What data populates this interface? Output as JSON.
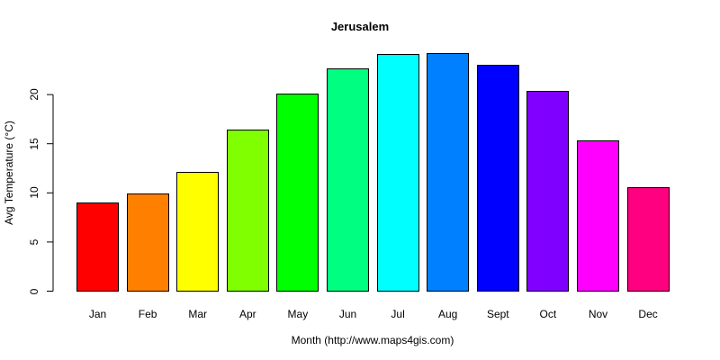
{
  "chart_data": {
    "type": "bar",
    "title": "Jerusalem",
    "xlabel": "Month (http://www.maps4gis.com)",
    "ylabel": "Avg Temperature (°C)",
    "categories": [
      "Jan",
      "Feb",
      "Mar",
      "Apr",
      "May",
      "Jun",
      "Jul",
      "Aug",
      "Sept",
      "Oct",
      "Nov",
      "Dec"
    ],
    "values": [
      9.0,
      9.9,
      12.1,
      16.4,
      20.1,
      22.7,
      24.1,
      24.2,
      23.0,
      20.4,
      15.3,
      10.6
    ],
    "colors": [
      "#FF0000",
      "#FF8000",
      "#FFFF00",
      "#80FF00",
      "#00FF00",
      "#00FF80",
      "#00FFFF",
      "#0080FF",
      "#0000FF",
      "#8000FF",
      "#FF00FF",
      "#FF0080"
    ],
    "yticks": [
      0,
      5,
      10,
      15,
      20
    ],
    "ylim": [
      0,
      24.2
    ],
    "grid": false,
    "legend": null
  }
}
